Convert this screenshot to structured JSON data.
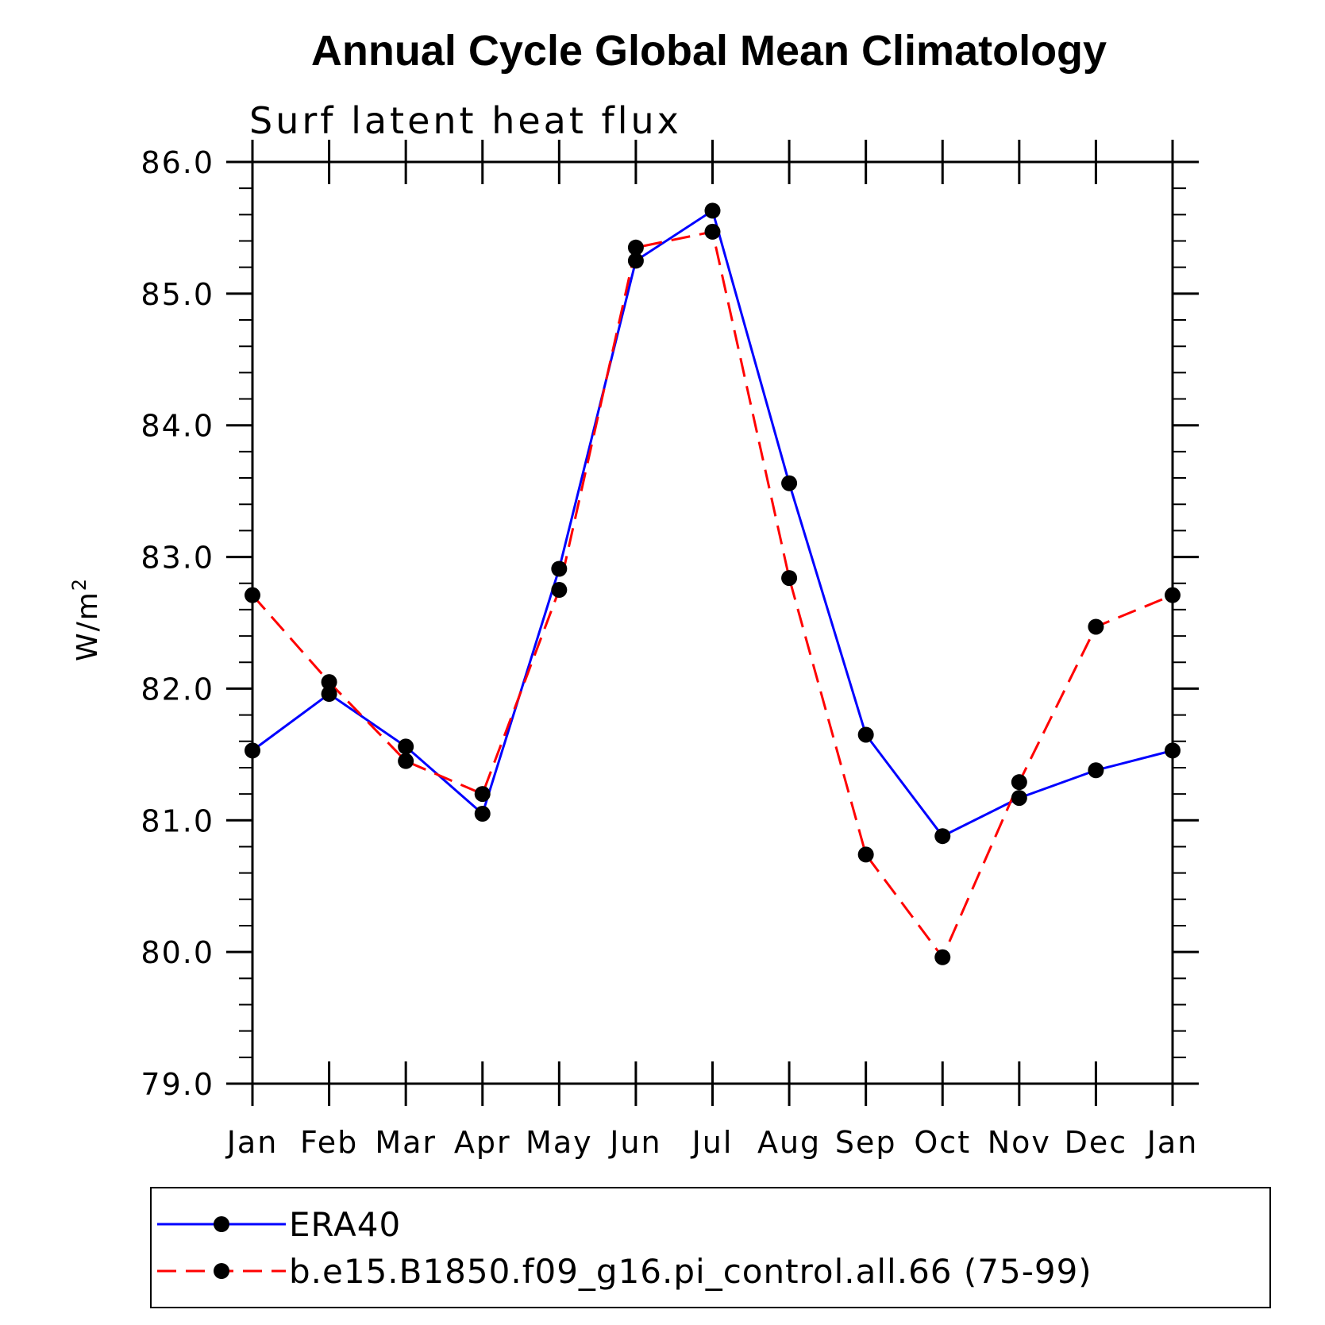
{
  "chart_data": {
    "type": "line",
    "title": "Annual Cycle Global Mean Climatology",
    "subtitle": "Surf latent heat flux",
    "ylabel": "W/m",
    "ylabel_sup": "2",
    "xlabel": "",
    "categories": [
      "Jan",
      "Feb",
      "Mar",
      "Apr",
      "May",
      "Jun",
      "Jul",
      "Aug",
      "Sep",
      "Oct",
      "Nov",
      "Dec",
      "Jan"
    ],
    "ylim": [
      79.0,
      86.0
    ],
    "yticks": [
      "79.0",
      "80.0",
      "81.0",
      "82.0",
      "83.0",
      "84.0",
      "85.0",
      "86.0"
    ],
    "grid": false,
    "legend_position": "bottom",
    "series": [
      {
        "name": "ERA40",
        "color": "#0000ff",
        "dash": "solid",
        "values": [
          81.53,
          81.96,
          81.56,
          81.05,
          82.91,
          85.25,
          85.63,
          83.56,
          81.65,
          80.88,
          81.17,
          81.38,
          81.53
        ]
      },
      {
        "name": "b.e15.B1850.f09_g16.pi_control.all.66 (75-99)",
        "color": "#ff0000",
        "dash": "dashed",
        "values": [
          82.71,
          82.05,
          81.45,
          81.2,
          82.75,
          85.35,
          85.47,
          82.84,
          80.74,
          79.96,
          81.29,
          82.47,
          82.71
        ]
      }
    ]
  }
}
